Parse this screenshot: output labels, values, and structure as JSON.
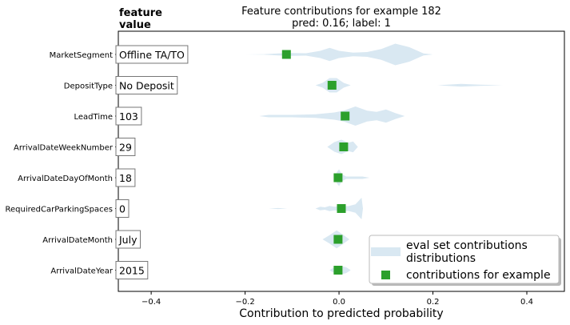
{
  "chart_data": {
    "type": "scatter",
    "title": "Feature contributions for example 182",
    "subtitle": "pred: 0.16; label: 1",
    "column_header": [
      "feature",
      "value"
    ],
    "xlabel": "Contribution to predicted probability",
    "xlim": [
      -0.47,
      0.48
    ],
    "xticks": [
      -0.4,
      -0.2,
      0.0,
      0.2,
      0.4
    ],
    "xtick_labels": [
      "−0.4",
      "−0.2",
      "0.0",
      "0.2",
      "0.4"
    ],
    "grid": false,
    "legend_position": "lower-right",
    "features": [
      {
        "name": "MarketSegment",
        "value": "Offline TA/TO",
        "contribution": -0.112,
        "violin": [
          [
            -0.2,
            0.0
          ],
          [
            -0.16,
            0.02
          ],
          [
            -0.13,
            0.08
          ],
          [
            -0.1,
            0.12
          ],
          [
            -0.07,
            0.1
          ],
          [
            -0.04,
            0.3
          ],
          [
            -0.02,
            0.55
          ],
          [
            0.0,
            0.3
          ],
          [
            0.03,
            0.15
          ],
          [
            0.06,
            0.2
          ],
          [
            0.09,
            0.45
          ],
          [
            0.12,
            0.9
          ],
          [
            0.15,
            0.6
          ],
          [
            0.18,
            0.08
          ],
          [
            0.2,
            0.0
          ]
        ]
      },
      {
        "name": "DepositType",
        "value": "No Deposit",
        "contribution": -0.015,
        "violin": [
          [
            -0.05,
            0.0
          ],
          [
            -0.035,
            0.2
          ],
          [
            -0.02,
            0.6
          ],
          [
            -0.005,
            0.6
          ],
          [
            0.01,
            0.2
          ],
          [
            0.025,
            0.0
          ]
        ],
        "violin2": [
          [
            0.21,
            0.0
          ],
          [
            0.26,
            0.12
          ],
          [
            0.3,
            0.05
          ],
          [
            0.35,
            0.0
          ]
        ]
      },
      {
        "name": "LeadTime",
        "value": "103",
        "contribution": 0.013,
        "violin": [
          [
            -0.17,
            0.0
          ],
          [
            -0.15,
            0.1
          ],
          [
            -0.1,
            0.1
          ],
          [
            -0.05,
            0.15
          ],
          [
            -0.01,
            0.3
          ],
          [
            0.01,
            0.45
          ],
          [
            0.035,
            0.8
          ],
          [
            0.06,
            0.45
          ],
          [
            0.08,
            0.35
          ],
          [
            0.1,
            0.55
          ],
          [
            0.12,
            0.25
          ],
          [
            0.14,
            0.0
          ]
        ]
      },
      {
        "name": "ArrivalDateWeekNumber",
        "value": "29",
        "contribution": 0.01,
        "violin": [
          [
            -0.025,
            0.0
          ],
          [
            -0.01,
            0.4
          ],
          [
            0.005,
            0.6
          ],
          [
            0.02,
            0.35
          ],
          [
            0.03,
            0.45
          ],
          [
            0.04,
            0.0
          ]
        ]
      },
      {
        "name": "ArrivalDateDayOfMonth",
        "value": "18",
        "contribution": -0.002,
        "violin": [
          [
            -0.01,
            0.0
          ],
          [
            -0.004,
            0.5
          ],
          [
            0.0,
            0.7
          ],
          [
            0.006,
            0.3
          ],
          [
            0.015,
            0.1
          ],
          [
            0.05,
            0.1
          ],
          [
            0.065,
            0.0
          ]
        ]
      },
      {
        "name": "RequiredCarParkingSpaces",
        "value": "0",
        "contribution": 0.005,
        "violin": [
          [
            -0.05,
            0.0
          ],
          [
            -0.04,
            0.15
          ],
          [
            -0.03,
            0.1
          ],
          [
            -0.02,
            0.22
          ],
          [
            -0.01,
            0.15
          ],
          [
            0.0,
            0.2
          ],
          [
            0.02,
            0.2
          ],
          [
            0.035,
            0.35
          ],
          [
            0.048,
            0.9
          ],
          [
            0.051,
            0.0
          ]
        ],
        "violin2": [
          [
            -0.15,
            0.0
          ],
          [
            -0.13,
            0.04
          ],
          [
            -0.11,
            0.0
          ]
        ]
      },
      {
        "name": "ArrivalDateMonth",
        "value": "July",
        "contribution": -0.002,
        "violin": [
          [
            -0.035,
            0.0
          ],
          [
            -0.02,
            0.35
          ],
          [
            -0.005,
            0.75
          ],
          [
            0.008,
            0.4
          ],
          [
            0.022,
            0.0
          ]
        ]
      },
      {
        "name": "ArrivalDateYear",
        "value": "2015",
        "contribution": -0.002,
        "violin": [
          [
            -0.02,
            0.0
          ],
          [
            -0.008,
            0.3
          ],
          [
            0.003,
            0.35
          ],
          [
            0.015,
            0.25
          ],
          [
            0.025,
            0.0
          ]
        ]
      }
    ],
    "legend": {
      "violin_label": "eval set contributions distributions",
      "violin_label_lines": [
        "eval set contributions",
        "distributions"
      ],
      "marker_label": "contributions for example"
    },
    "colors": {
      "violin": "#d9e8f2",
      "marker": "#2ca02c",
      "axes": "#000000"
    }
  }
}
